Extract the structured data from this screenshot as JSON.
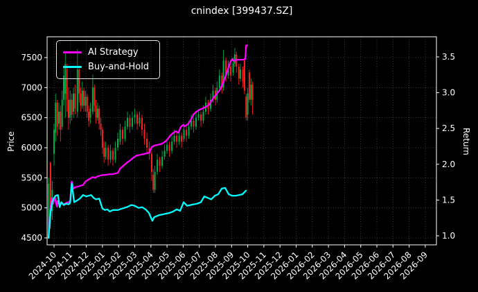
{
  "title": "cnindex [399437.SZ]",
  "colors": {
    "background": "#000000",
    "text": "#ffffff",
    "grid": "#4a4a4a",
    "spine": "#ffffff",
    "candle_up": "#00b04a",
    "candle_down": "#ff2020",
    "ai_line": "#ff00ff",
    "bh_line": "#00ffff"
  },
  "legend": {
    "items": [
      {
        "label": "AI Strategy",
        "color": "#ff00ff"
      },
      {
        "label": "Buy-and-Hold",
        "color": "#00ffff"
      }
    ]
  },
  "chart_data": {
    "type": "line",
    "overlay": "candlestick",
    "title": "cnindex [399437.SZ]",
    "xlabel": "",
    "ylabel_left": "Price",
    "ylabel_right": "Return",
    "grid": true,
    "legend_position": "upper left",
    "x_unit": "months offset from 2024-10 tick",
    "x_axis": {
      "ticks": [
        "2024-10",
        "2024-11",
        "2024-12",
        "2025-01",
        "2025-02",
        "2025-03",
        "2025-04",
        "2025-05",
        "2025-06",
        "2025-07",
        "2025-08",
        "2025-09",
        "2025-10",
        "2025-11",
        "2025-12",
        "2026-01",
        "2026-02",
        "2026-03",
        "2026-04",
        "2026-05",
        "2026-06",
        "2026-07",
        "2026-08",
        "2026-09"
      ]
    },
    "y_left": {
      "label": "Price",
      "ticks": [
        4500,
        5000,
        5500,
        6000,
        6500,
        7000,
        7500
      ],
      "range": [
        4360,
        7845
      ]
    },
    "y_right": {
      "label": "Return",
      "ticks": [
        1.0,
        1.5,
        2.0,
        2.5,
        3.0,
        3.5
      ],
      "range": [
        0.86,
        3.78
      ]
    },
    "series": [
      {
        "name": "AI Strategy",
        "axis": "right",
        "color": "#ff00ff",
        "x": [
          -0.34,
          -0.25,
          -0.15,
          -0.05,
          0.05,
          0.17,
          0.24,
          0.35,
          0.45,
          0.6,
          0.75,
          0.9,
          1.0,
          1.1,
          1.2,
          1.35,
          1.5,
          1.65,
          1.8,
          1.95,
          2.1,
          2.25,
          2.4,
          2.55,
          2.7,
          2.85,
          3.0,
          3.2,
          3.4,
          3.6,
          3.8,
          3.95,
          4.1,
          4.3,
          4.5,
          4.7,
          4.9,
          5.1,
          5.3,
          5.5,
          5.7,
          5.9,
          6.05,
          6.2,
          6.4,
          6.6,
          6.8,
          7.0,
          7.2,
          7.4,
          7.55,
          7.7,
          7.85,
          8.0,
          8.1,
          8.3,
          8.5,
          8.65,
          8.8,
          9.0,
          9.2,
          9.4,
          9.6,
          9.8,
          9.95,
          10.1,
          10.25,
          10.4,
          10.55,
          10.7,
          10.85,
          10.95,
          11.05,
          11.15,
          11.3,
          11.5,
          11.7,
          11.85,
          11.9,
          11.97
        ],
        "y": [
          0.98,
          1.3,
          1.52,
          1.45,
          1.55,
          1.41,
          1.49,
          1.42,
          1.46,
          1.44,
          1.46,
          1.47,
          1.49,
          1.76,
          1.66,
          1.68,
          1.69,
          1.7,
          1.71,
          1.76,
          1.78,
          1.8,
          1.82,
          1.81,
          1.83,
          1.84,
          1.85,
          1.85,
          1.86,
          1.86,
          1.87,
          1.88,
          1.94,
          1.98,
          2.02,
          2.05,
          2.09,
          2.12,
          2.13,
          2.14,
          2.15,
          2.16,
          2.24,
          2.26,
          2.27,
          2.28,
          2.3,
          2.34,
          2.4,
          2.44,
          2.46,
          2.44,
          2.52,
          2.55,
          2.53,
          2.56,
          2.63,
          2.7,
          2.73,
          2.76,
          2.78,
          2.8,
          2.83,
          2.9,
          2.95,
          2.99,
          3.03,
          3.1,
          3.18,
          3.28,
          3.38,
          3.44,
          3.47,
          3.44,
          3.46,
          3.46,
          3.46,
          3.47,
          3.66,
          3.66
        ]
      },
      {
        "name": "Buy-and-Hold",
        "axis": "right",
        "color": "#00ffff",
        "x": [
          -0.34,
          -0.28,
          -0.2,
          -0.1,
          0.0,
          0.1,
          0.24,
          0.35,
          0.45,
          0.6,
          0.75,
          0.9,
          1.0,
          1.1,
          1.25,
          1.4,
          1.6,
          1.8,
          2.0,
          2.15,
          2.3,
          2.45,
          2.6,
          2.8,
          3.0,
          3.15,
          3.3,
          3.45,
          3.65,
          3.95,
          4.2,
          4.5,
          4.8,
          5.0,
          5.24,
          5.45,
          5.67,
          5.88,
          6.09,
          6.2,
          6.31,
          6.52,
          6.75,
          6.95,
          7.15,
          7.38,
          7.6,
          7.81,
          8.03,
          8.24,
          8.45,
          8.65,
          8.88,
          9.1,
          9.31,
          9.53,
          9.74,
          9.96,
          10.17,
          10.39,
          10.6,
          10.82,
          11.03,
          11.24,
          11.45,
          11.67,
          11.89
        ],
        "y": [
          0.97,
          1.15,
          1.35,
          1.48,
          1.53,
          1.56,
          1.57,
          1.4,
          1.47,
          1.43,
          1.45,
          1.44,
          1.46,
          1.73,
          1.47,
          1.49,
          1.52,
          1.57,
          1.55,
          1.56,
          1.57,
          1.53,
          1.51,
          1.52,
          1.38,
          1.36,
          1.37,
          1.34,
          1.36,
          1.36,
          1.38,
          1.4,
          1.43,
          1.42,
          1.39,
          1.4,
          1.37,
          1.32,
          1.21,
          1.26,
          1.27,
          1.29,
          1.3,
          1.31,
          1.32,
          1.34,
          1.37,
          1.35,
          1.47,
          1.42,
          1.43,
          1.44,
          1.45,
          1.47,
          1.55,
          1.53,
          1.51,
          1.56,
          1.58,
          1.66,
          1.67,
          1.58,
          1.56,
          1.56,
          1.57,
          1.58,
          1.63
        ]
      }
    ],
    "candlestick": {
      "axis": "left",
      "up_color": "#00b04a",
      "down_color": "#ff2020",
      "columns": [
        "t",
        "open",
        "high",
        "low",
        "close"
      ],
      "data": [
        [
          -0.33,
          4550,
          5500,
          4500,
          5400
        ],
        [
          -0.22,
          5750,
          5770,
          4650,
          4950
        ],
        [
          -0.11,
          4950,
          5450,
          4800,
          5300
        ],
        [
          0.0,
          5900,
          6400,
          5700,
          6300
        ],
        [
          0.1,
          6250,
          6900,
          6100,
          6750
        ],
        [
          0.2,
          6750,
          6800,
          6200,
          6350
        ],
        [
          0.3,
          6400,
          6750,
          6300,
          6600
        ],
        [
          0.4,
          6600,
          6700,
          6100,
          6300
        ],
        [
          0.5,
          6350,
          6950,
          6300,
          6800
        ],
        [
          0.6,
          6800,
          7350,
          6700,
          7200
        ],
        [
          0.7,
          6900,
          7590,
          6500,
          7400
        ],
        [
          0.8,
          7300,
          7400,
          6600,
          6800
        ],
        [
          0.9,
          6800,
          7000,
          6300,
          6500
        ],
        [
          1.0,
          6500,
          6950,
          6400,
          6800
        ],
        [
          1.1,
          6800,
          6900,
          6450,
          6550
        ],
        [
          1.2,
          6600,
          7000,
          6500,
          6900
        ],
        [
          1.3,
          6900,
          7050,
          6550,
          6650
        ],
        [
          1.45,
          6600,
          7640,
          6500,
          7300
        ],
        [
          1.55,
          7300,
          7350,
          6750,
          6900
        ],
        [
          1.65,
          6900,
          7000,
          6600,
          6700
        ],
        [
          1.75,
          6700,
          7100,
          6650,
          6950
        ],
        [
          1.85,
          6950,
          7000,
          6600,
          6700
        ],
        [
          1.95,
          6700,
          6950,
          6600,
          6850
        ],
        [
          2.05,
          6850,
          6900,
          6500,
          6600
        ],
        [
          2.15,
          6600,
          6700,
          6350,
          6450
        ],
        [
          2.25,
          6500,
          6750,
          6400,
          6650
        ],
        [
          2.4,
          6600,
          7220,
          6550,
          7000
        ],
        [
          2.5,
          7000,
          7050,
          6600,
          6700
        ],
        [
          2.6,
          6700,
          6800,
          6400,
          6500
        ],
        [
          2.7,
          6500,
          6750,
          6450,
          6650
        ],
        [
          2.8,
          6650,
          6700,
          6300,
          6400
        ],
        [
          2.9,
          6400,
          6500,
          6200,
          6300
        ],
        [
          3.0,
          6300,
          6350,
          5900,
          6000
        ],
        [
          3.1,
          6000,
          6100,
          5750,
          5850
        ],
        [
          3.2,
          5850,
          6100,
          5800,
          6000
        ],
        [
          3.35,
          6000,
          6050,
          5700,
          5800
        ],
        [
          3.5,
          5800,
          6050,
          5750,
          5950
        ],
        [
          3.65,
          5950,
          6000,
          5700,
          5800
        ],
        [
          3.8,
          5800,
          6100,
          5750,
          6000
        ],
        [
          3.95,
          6000,
          6250,
          5950,
          6150
        ],
        [
          4.1,
          6100,
          6400,
          6050,
          6300
        ],
        [
          4.25,
          6300,
          6350,
          6050,
          6150
        ],
        [
          4.4,
          6150,
          6450,
          6100,
          6350
        ],
        [
          4.55,
          6350,
          6600,
          6300,
          6500
        ],
        [
          4.7,
          6500,
          6550,
          6250,
          6350
        ],
        [
          4.85,
          6350,
          6600,
          6300,
          6500
        ],
        [
          5.0,
          6500,
          6650,
          6400,
          6550
        ],
        [
          5.15,
          6550,
          6600,
          6300,
          6400
        ],
        [
          5.3,
          6400,
          6600,
          6350,
          6500
        ],
        [
          5.45,
          6500,
          6550,
          6200,
          6300
        ],
        [
          5.6,
          6300,
          6400,
          6050,
          6150
        ],
        [
          5.75,
          6150,
          6250,
          5900,
          6000
        ],
        [
          5.9,
          6000,
          6100,
          5800,
          5900
        ],
        [
          6.05,
          5900,
          5950,
          5450,
          5600
        ],
        [
          6.15,
          5550,
          5650,
          5250,
          5300
        ],
        [
          6.25,
          5300,
          5700,
          5250,
          5600
        ],
        [
          6.4,
          5600,
          5900,
          5550,
          5800
        ],
        [
          6.55,
          5800,
          5850,
          5600,
          5700
        ],
        [
          6.7,
          5700,
          5950,
          5650,
          5850
        ],
        [
          6.85,
          5850,
          6050,
          5800,
          5950
        ],
        [
          7.0,
          5950,
          6150,
          5900,
          6050
        ],
        [
          7.15,
          6050,
          6100,
          5850,
          5950
        ],
        [
          7.3,
          5950,
          6200,
          5900,
          6100
        ],
        [
          7.45,
          6100,
          6300,
          6050,
          6200
        ],
        [
          7.6,
          6200,
          6250,
          6000,
          6100
        ],
        [
          7.75,
          6100,
          6280,
          6050,
          6200
        ],
        [
          7.9,
          6200,
          6250,
          6000,
          6100
        ],
        [
          8.05,
          6150,
          6400,
          6100,
          6300
        ],
        [
          8.2,
          6300,
          6350,
          6100,
          6200
        ],
        [
          8.35,
          6200,
          6450,
          6150,
          6350
        ],
        [
          8.5,
          6350,
          6550,
          6300,
          6450
        ],
        [
          8.65,
          6450,
          6500,
          6250,
          6350
        ],
        [
          8.8,
          6350,
          6600,
          6300,
          6500
        ],
        [
          8.95,
          6500,
          6650,
          6450,
          6550
        ],
        [
          9.1,
          6550,
          6600,
          6350,
          6450
        ],
        [
          9.25,
          6450,
          6700,
          6400,
          6600
        ],
        [
          9.4,
          6600,
          6850,
          6550,
          6750
        ],
        [
          9.55,
          6750,
          6800,
          6550,
          6650
        ],
        [
          9.7,
          6650,
          6900,
          6600,
          6800
        ],
        [
          9.85,
          6800,
          7050,
          6750,
          6950
        ],
        [
          10.0,
          6950,
          7000,
          6700,
          6800
        ],
        [
          10.1,
          6800,
          7100,
          6750,
          7000
        ],
        [
          10.25,
          7000,
          7300,
          6950,
          7200
        ],
        [
          10.4,
          7200,
          7250,
          6900,
          7000
        ],
        [
          10.5,
          7000,
          7630,
          6950,
          7450
        ],
        [
          10.65,
          7450,
          7500,
          7100,
          7200
        ],
        [
          10.8,
          7200,
          7450,
          7150,
          7350
        ],
        [
          10.95,
          7350,
          7400,
          7100,
          7200
        ],
        [
          11.1,
          7250,
          7500,
          7200,
          7400
        ],
        [
          11.2,
          7400,
          7660,
          7350,
          7550
        ],
        [
          11.3,
          7550,
          7600,
          7250,
          7350
        ],
        [
          11.45,
          7350,
          7400,
          7050,
          7150
        ],
        [
          11.55,
          7150,
          7400,
          7100,
          7300
        ],
        [
          11.7,
          7300,
          7350,
          7000,
          7100
        ],
        [
          11.8,
          7450,
          7460,
          6890,
          6950
        ],
        [
          11.9,
          6850,
          6900,
          6450,
          6500
        ],
        [
          12.0,
          6550,
          7000,
          6450,
          6900
        ],
        [
          12.1,
          7250,
          7300,
          6750,
          6800
        ],
        [
          12.2,
          6800,
          7150,
          6700,
          7050
        ],
        [
          12.3,
          7050,
          7100,
          6550,
          6800
        ]
      ]
    }
  }
}
